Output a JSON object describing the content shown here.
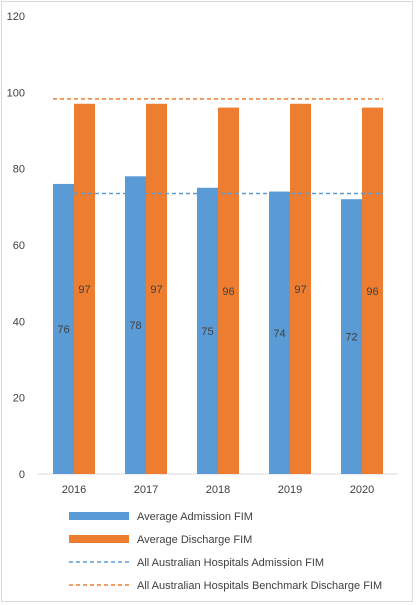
{
  "chart_data": {
    "type": "bar",
    "categories": [
      "2016",
      "2017",
      "2018",
      "2019",
      "2020"
    ],
    "series": [
      {
        "name": "Average Admission FIM",
        "values": [
          76,
          78,
          75,
          74,
          72
        ],
        "color": "#5b9bd5"
      },
      {
        "name": "Average Discharge FIM",
        "values": [
          97,
          97,
          96,
          97,
          96
        ],
        "color": "#ed7d31"
      }
    ],
    "data_labels": {
      "admission": [
        "76",
        "78",
        "75",
        "74",
        "72"
      ],
      "discharge": [
        "97",
        "97",
        "96",
        "97",
        "96"
      ]
    },
    "reference_lines": [
      {
        "name": "All Australian Hospitals Admission FIM",
        "value": 73.5,
        "color": "#5b9bd5",
        "style": "dashed"
      },
      {
        "name": "All Australian Hospitals Benchmark Discharge FIM",
        "value": 98.3,
        "color": "#ed7d31",
        "style": "dashed"
      }
    ],
    "y_ticks": [
      "0",
      "20",
      "40",
      "60",
      "80",
      "100",
      "120"
    ],
    "ylim": [
      0,
      120
    ],
    "grid": false,
    "legend_position": "bottom"
  }
}
